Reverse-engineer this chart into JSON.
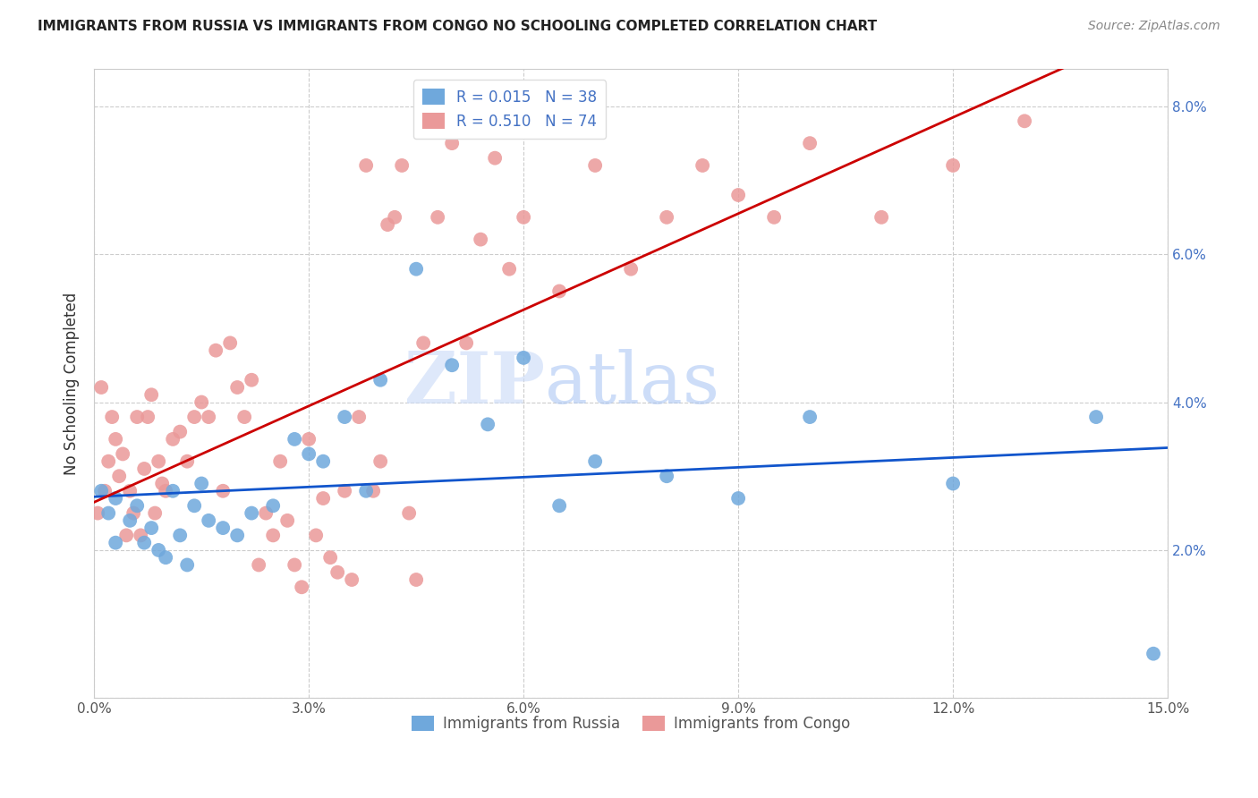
{
  "title": "IMMIGRANTS FROM RUSSIA VS IMMIGRANTS FROM CONGO NO SCHOOLING COMPLETED CORRELATION CHART",
  "source": "Source: ZipAtlas.com",
  "ylabel": "No Schooling Completed",
  "xlim": [
    0.0,
    0.15
  ],
  "ylim": [
    0.0,
    0.085
  ],
  "xticks": [
    0.0,
    0.03,
    0.06,
    0.09,
    0.12,
    0.15
  ],
  "xtick_labels": [
    "0.0%",
    "3.0%",
    "6.0%",
    "9.0%",
    "12.0%",
    "15.0%"
  ],
  "yticks": [
    0.0,
    0.02,
    0.04,
    0.06,
    0.08
  ],
  "ytick_labels": [
    "",
    "2.0%",
    "4.0%",
    "6.0%",
    "8.0%"
  ],
  "russia_R": 0.015,
  "russia_N": 38,
  "congo_R": 0.51,
  "congo_N": 74,
  "russia_color": "#6fa8dc",
  "congo_color": "#ea9999",
  "russia_line_color": "#1155cc",
  "congo_line_color": "#cc0000",
  "watermark_zip": "ZIP",
  "watermark_atlas": "atlas",
  "legend_russia": "Immigrants from Russia",
  "legend_congo": "Immigrants from Congo",
  "russia_x": [
    0.001,
    0.002,
    0.003,
    0.005,
    0.006,
    0.008,
    0.009,
    0.01,
    0.012,
    0.013,
    0.015,
    0.016,
    0.018,
    0.02,
    0.022,
    0.025,
    0.028,
    0.03,
    0.032,
    0.035,
    0.038,
    0.04,
    0.045,
    0.05,
    0.055,
    0.06,
    0.065,
    0.07,
    0.08,
    0.09,
    0.1,
    0.12,
    0.14,
    0.148,
    0.003,
    0.007,
    0.011,
    0.014
  ],
  "russia_y": [
    0.028,
    0.025,
    0.027,
    0.024,
    0.026,
    0.023,
    0.02,
    0.019,
    0.022,
    0.018,
    0.029,
    0.024,
    0.023,
    0.022,
    0.025,
    0.026,
    0.035,
    0.033,
    0.032,
    0.038,
    0.028,
    0.043,
    0.058,
    0.045,
    0.037,
    0.046,
    0.026,
    0.032,
    0.03,
    0.027,
    0.038,
    0.029,
    0.038,
    0.006,
    0.021,
    0.021,
    0.028,
    0.026
  ],
  "congo_x": [
    0.0005,
    0.001,
    0.0015,
    0.002,
    0.0025,
    0.003,
    0.0035,
    0.004,
    0.0045,
    0.005,
    0.0055,
    0.006,
    0.0065,
    0.007,
    0.0075,
    0.008,
    0.0085,
    0.009,
    0.0095,
    0.01,
    0.011,
    0.012,
    0.013,
    0.014,
    0.015,
    0.016,
    0.017,
    0.018,
    0.019,
    0.02,
    0.021,
    0.022,
    0.023,
    0.024,
    0.025,
    0.026,
    0.027,
    0.028,
    0.029,
    0.03,
    0.031,
    0.032,
    0.033,
    0.034,
    0.035,
    0.036,
    0.038,
    0.04,
    0.042,
    0.044,
    0.046,
    0.048,
    0.05,
    0.052,
    0.054,
    0.056,
    0.06,
    0.065,
    0.07,
    0.075,
    0.08,
    0.085,
    0.09,
    0.095,
    0.1,
    0.11,
    0.12,
    0.13,
    0.037,
    0.039,
    0.041,
    0.043,
    0.045,
    0.058
  ],
  "congo_y": [
    0.025,
    0.042,
    0.028,
    0.032,
    0.038,
    0.035,
    0.03,
    0.033,
    0.022,
    0.028,
    0.025,
    0.038,
    0.022,
    0.031,
    0.038,
    0.041,
    0.025,
    0.032,
    0.029,
    0.028,
    0.035,
    0.036,
    0.032,
    0.038,
    0.04,
    0.038,
    0.047,
    0.028,
    0.048,
    0.042,
    0.038,
    0.043,
    0.018,
    0.025,
    0.022,
    0.032,
    0.024,
    0.018,
    0.015,
    0.035,
    0.022,
    0.027,
    0.019,
    0.017,
    0.028,
    0.016,
    0.072,
    0.032,
    0.065,
    0.025,
    0.048,
    0.065,
    0.075,
    0.048,
    0.062,
    0.073,
    0.065,
    0.055,
    0.072,
    0.058,
    0.065,
    0.072,
    0.068,
    0.065,
    0.075,
    0.065,
    0.072,
    0.078,
    0.038,
    0.028,
    0.064,
    0.072,
    0.016,
    0.058
  ]
}
